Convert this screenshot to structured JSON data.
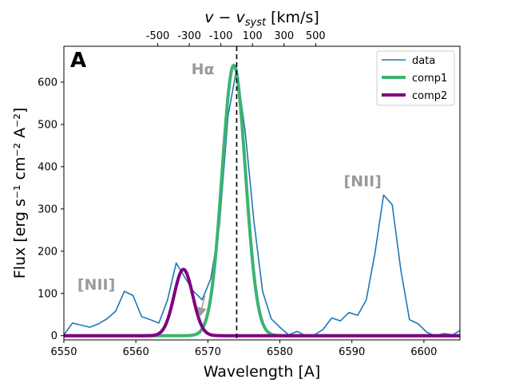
{
  "chart_data": {
    "type": "line",
    "panel_label": "A",
    "xlabel": "Wavelength [A]",
    "ylabel": "Flux [erg s⁻¹ cm⁻² A⁻²]",
    "top_axis_label": "v − v_syst [km/s]",
    "top_axis_label_parts": {
      "v1": "v",
      "minus": " − ",
      "v2": "v",
      "sub": "syst",
      "unit": " [km/s]"
    },
    "xlim": [
      6550,
      6605
    ],
    "ylim": [
      -10,
      685
    ],
    "x_ticks": [
      6550,
      6560,
      6570,
      6580,
      6590,
      6600
    ],
    "y_ticks": [
      0,
      100,
      200,
      300,
      400,
      500,
      600
    ],
    "systemic_wavelength": 6574.0,
    "top_ticks": [
      {
        "label": "-500",
        "velocity": -500
      },
      {
        "label": "-300",
        "velocity": -300
      },
      {
        "label": "-100",
        "velocity": -100
      },
      {
        "label": "100",
        "velocity": 100
      },
      {
        "label": "300",
        "velocity": 300
      },
      {
        "label": "500",
        "velocity": 500
      }
    ],
    "annotations": [
      {
        "text": "Hα",
        "x": 6569.3,
        "y": 630
      },
      {
        "text": "[NII]",
        "x": 6554.5,
        "y": 120
      },
      {
        "text": "[NII]",
        "x": 6591.5,
        "y": 365
      }
    ],
    "arrow": {
      "from": [
        6569.6,
        95
      ],
      "to": [
        6569.0,
        55
      ]
    },
    "legend": {
      "position": "top-right",
      "entries": [
        "data",
        "comp1",
        "comp2"
      ]
    },
    "series": [
      {
        "name": "data",
        "color": "#1f77b4",
        "x": [
          6550.0,
          6551.2,
          6552.4,
          6553.6,
          6554.8,
          6556.0,
          6557.2,
          6558.4,
          6559.6,
          6560.8,
          6562.0,
          6563.2,
          6564.4,
          6565.6,
          6566.8,
          6568.0,
          6569.2,
          6570.4,
          6571.6,
          6572.8,
          6574.0,
          6575.2,
          6576.4,
          6577.6,
          6578.8,
          6580.0,
          6581.2,
          6582.4,
          6583.6,
          6584.8,
          6586.0,
          6587.2,
          6588.4,
          6589.6,
          6590.8,
          6592.0,
          6593.2,
          6594.4,
          6595.6,
          6596.8,
          6598.0,
          6599.2,
          6600.4,
          6601.6,
          6602.8,
          6604.0,
          6605.0
        ],
        "values": [
          2,
          30,
          25,
          20,
          28,
          40,
          58,
          105,
          95,
          45,
          38,
          30,
          85,
          172,
          138,
          105,
          85,
          135,
          260,
          520,
          632,
          480,
          270,
          105,
          40,
          20,
          2,
          10,
          0,
          2,
          15,
          42,
          35,
          55,
          48,
          85,
          195,
          333,
          310,
          155,
          38,
          28,
          8,
          0,
          5,
          2,
          12
        ]
      },
      {
        "name": "comp1",
        "color": "#3cb371",
        "type": "gaussian",
        "amplitude": 640,
        "center": 6573.6,
        "sigma": 1.62
      },
      {
        "name": "comp2",
        "color": "#800080",
        "type": "gaussian",
        "amplitude": 157,
        "center": 6566.6,
        "sigma": 1.3
      }
    ]
  }
}
